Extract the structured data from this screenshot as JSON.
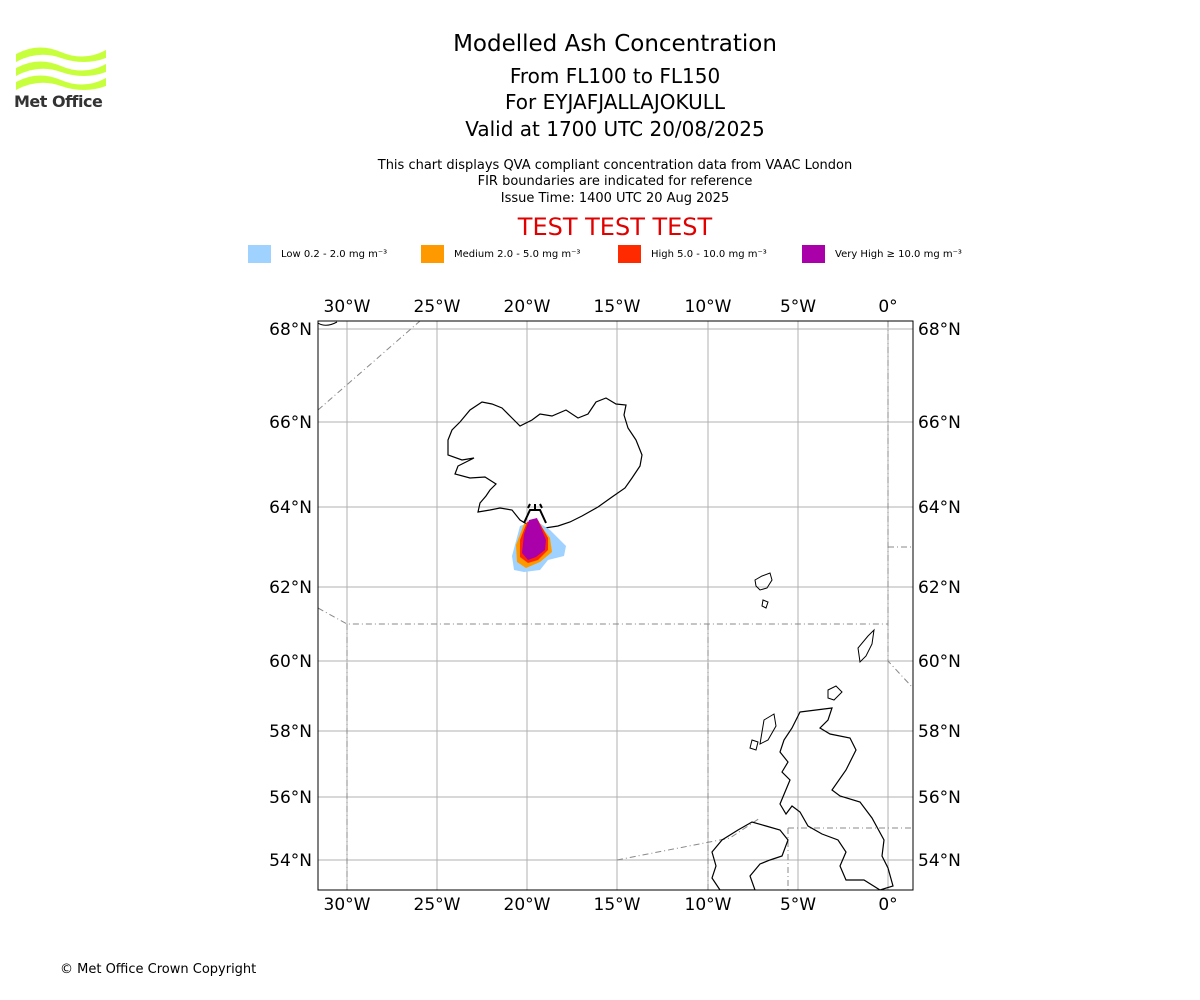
{
  "logo": {
    "text": "Met Office",
    "color": "#c8ff3c"
  },
  "header": {
    "title": "Modelled Ash Concentration",
    "levels": "From FL100 to FL150",
    "volcano": "For EYJAFJALLAJOKULL",
    "valid": "Valid at 1700 UTC 20/08/2025",
    "note_line1": "This chart displays QVA compliant concentration data from VAAC London",
    "note_line2": "FIR boundaries are indicated for reference",
    "issue_time": "Issue Time: 1400 UTC 20 Aug 2025",
    "test_banner": "TEST TEST TEST"
  },
  "legend": [
    {
      "label": "Low 0.2 - 2.0 mg m⁻³",
      "color": "#a0d2ff"
    },
    {
      "label": "Medium 2.0 - 5.0 mg m⁻³",
      "color": "#ff9900"
    },
    {
      "label": "High 5.0 - 10.0 mg m⁻³",
      "color": "#ff2a00"
    },
    {
      "label": "Very High ≥ 10.0 mg m⁻³",
      "color": "#aa00aa"
    }
  ],
  "map": {
    "lon_ticks": [
      "30°W",
      "25°W",
      "20°W",
      "15°W",
      "10°W",
      "5°W",
      "0°"
    ],
    "lat_ticks": [
      "68°N",
      "66°N",
      "64°N",
      "62°N",
      "60°N",
      "58°N",
      "56°N",
      "54°N"
    ],
    "gridlines": true,
    "volcano_marker": "volcano-symbol"
  },
  "footer": {
    "copyright": "© Met Office Crown Copyright"
  }
}
